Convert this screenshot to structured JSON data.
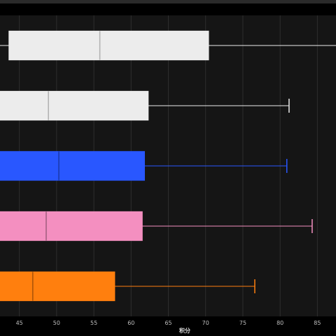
{
  "chart_data": {
    "type": "box",
    "orientation": "horizontal",
    "title": "",
    "xlabel": "积分",
    "ylabel": "",
    "xlim": [
      42.4,
      87.5
    ],
    "xticks": [
      45,
      50,
      55,
      60,
      65,
      70,
      75,
      80,
      85
    ],
    "grid": true,
    "legend": "none",
    "series": [
      {
        "color": "#ececec",
        "whisker_low": 40.5,
        "q1": 43.6,
        "median": 55.8,
        "q3": 70.4,
        "whisker_high": 88.0
      },
      {
        "color": "#ececec",
        "whisker_low": 40.5,
        "q1": 40.8,
        "median": 48.9,
        "q3": 62.3,
        "whisker_high": 81.2
      },
      {
        "color": "#2957ff",
        "whisker_low": 40.5,
        "q1": 40.8,
        "median": 50.3,
        "q3": 61.8,
        "whisker_high": 80.9
      },
      {
        "color": "#f48fc0",
        "whisker_low": 40.5,
        "q1": 40.8,
        "median": 48.6,
        "q3": 61.5,
        "whisker_high": 84.3
      },
      {
        "color": "#ff7f0e",
        "whisker_low": 40.5,
        "q1": 40.8,
        "median": 46.8,
        "q3": 57.8,
        "whisker_high": 76.6
      }
    ]
  }
}
